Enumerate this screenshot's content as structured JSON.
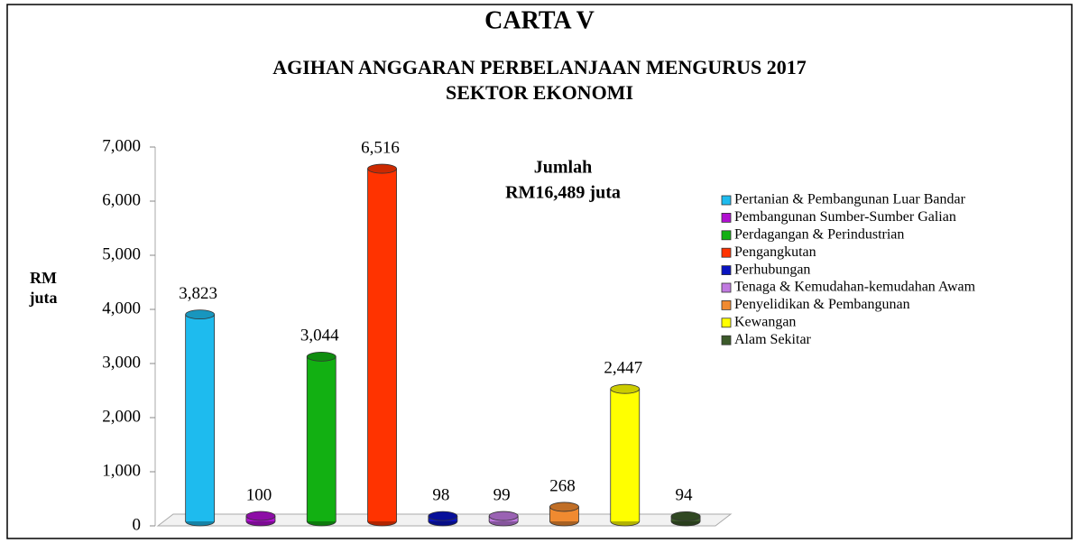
{
  "chart_data": {
    "type": "bar",
    "title": "CARTA V",
    "subtitle": [
      "AGIHAN ANGGARAN PERBELANJAAN MENGURUS 2017",
      "SEKTOR EKONOMI"
    ],
    "y_label": [
      "RM",
      "juta"
    ],
    "annotation": [
      "Jumlah",
      "RM16,489 juta"
    ],
    "categories": [
      "Pertanian & Pembangunan Luar Bandar",
      "Pembangunan Sumber-Sumber Galian",
      "Perdagangan & Perindustrian",
      "Pengangkutan",
      "Perhubungan",
      "Tenaga & Kemudahan-kemudahan Awam",
      "Penyelidikan & Pembangunan",
      "Kewangan",
      "Alam Sekitar"
    ],
    "values": [
      3823,
      100,
      3044,
      6516,
      98,
      99,
      268,
      2447,
      94
    ],
    "value_labels": [
      "3,823",
      "100",
      "3,044",
      "6,516",
      "98",
      "99",
      "268",
      "2,447",
      "94"
    ],
    "colors": [
      "#1ebbee",
      "#b010d0",
      "#12b012",
      "#ff3300",
      "#0a14c0",
      "#c07ae0",
      "#f08a30",
      "#ffff00",
      "#3c5a2a"
    ],
    "ylim": [
      0,
      7000
    ],
    "yticks": [
      0,
      {
        "value": 1000,
        "label": "1,000"
      },
      {
        "value": 2000,
        "label": "2,000"
      },
      {
        "value": 3000,
        "label": "3,000"
      },
      {
        "value": 4000,
        "label": "4,000"
      },
      {
        "value": 5000,
        "label": "5,000"
      },
      {
        "value": 6000,
        "label": "6,000"
      },
      {
        "value": 7000,
        "label": "7,000"
      }
    ],
    "legend": "right"
  }
}
